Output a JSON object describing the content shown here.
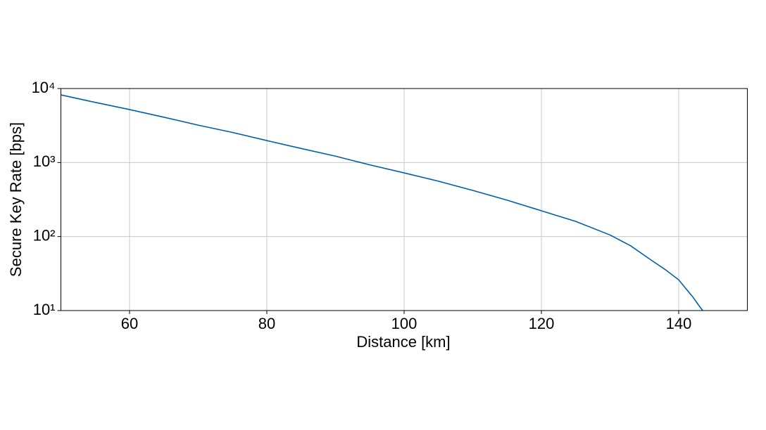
{
  "chart_data": {
    "type": "line",
    "xlabel": "Distance [km]",
    "ylabel": "Secure Key Rate [bps]",
    "x": [
      50,
      55,
      60,
      65,
      70,
      75,
      80,
      85,
      90,
      95,
      100,
      105,
      110,
      115,
      120,
      125,
      130,
      133,
      136,
      138,
      140,
      141,
      142,
      143,
      143.5
    ],
    "series": [
      {
        "name": "Secure key rate",
        "color": "#005fa8",
        "values": [
          8200,
          6500,
          5200,
          4100,
          3200,
          2550,
          1980,
          1550,
          1220,
          930,
          725,
          560,
          420,
          310,
          223,
          160,
          105,
          75,
          48,
          36,
          26,
          20,
          15.5,
          11.5,
          10
        ]
      }
    ],
    "xlim": [
      50,
      150
    ],
    "xticks": [
      60,
      80,
      100,
      120,
      140
    ],
    "ylim": [
      10,
      10000
    ],
    "yscale": "log",
    "yticks": [
      {
        "value": 10,
        "label": "10¹"
      },
      {
        "value": 100,
        "label": "10²"
      },
      {
        "value": 1000,
        "label": "10³"
      },
      {
        "value": 10000,
        "label": "10⁴"
      }
    ],
    "grid": true
  }
}
